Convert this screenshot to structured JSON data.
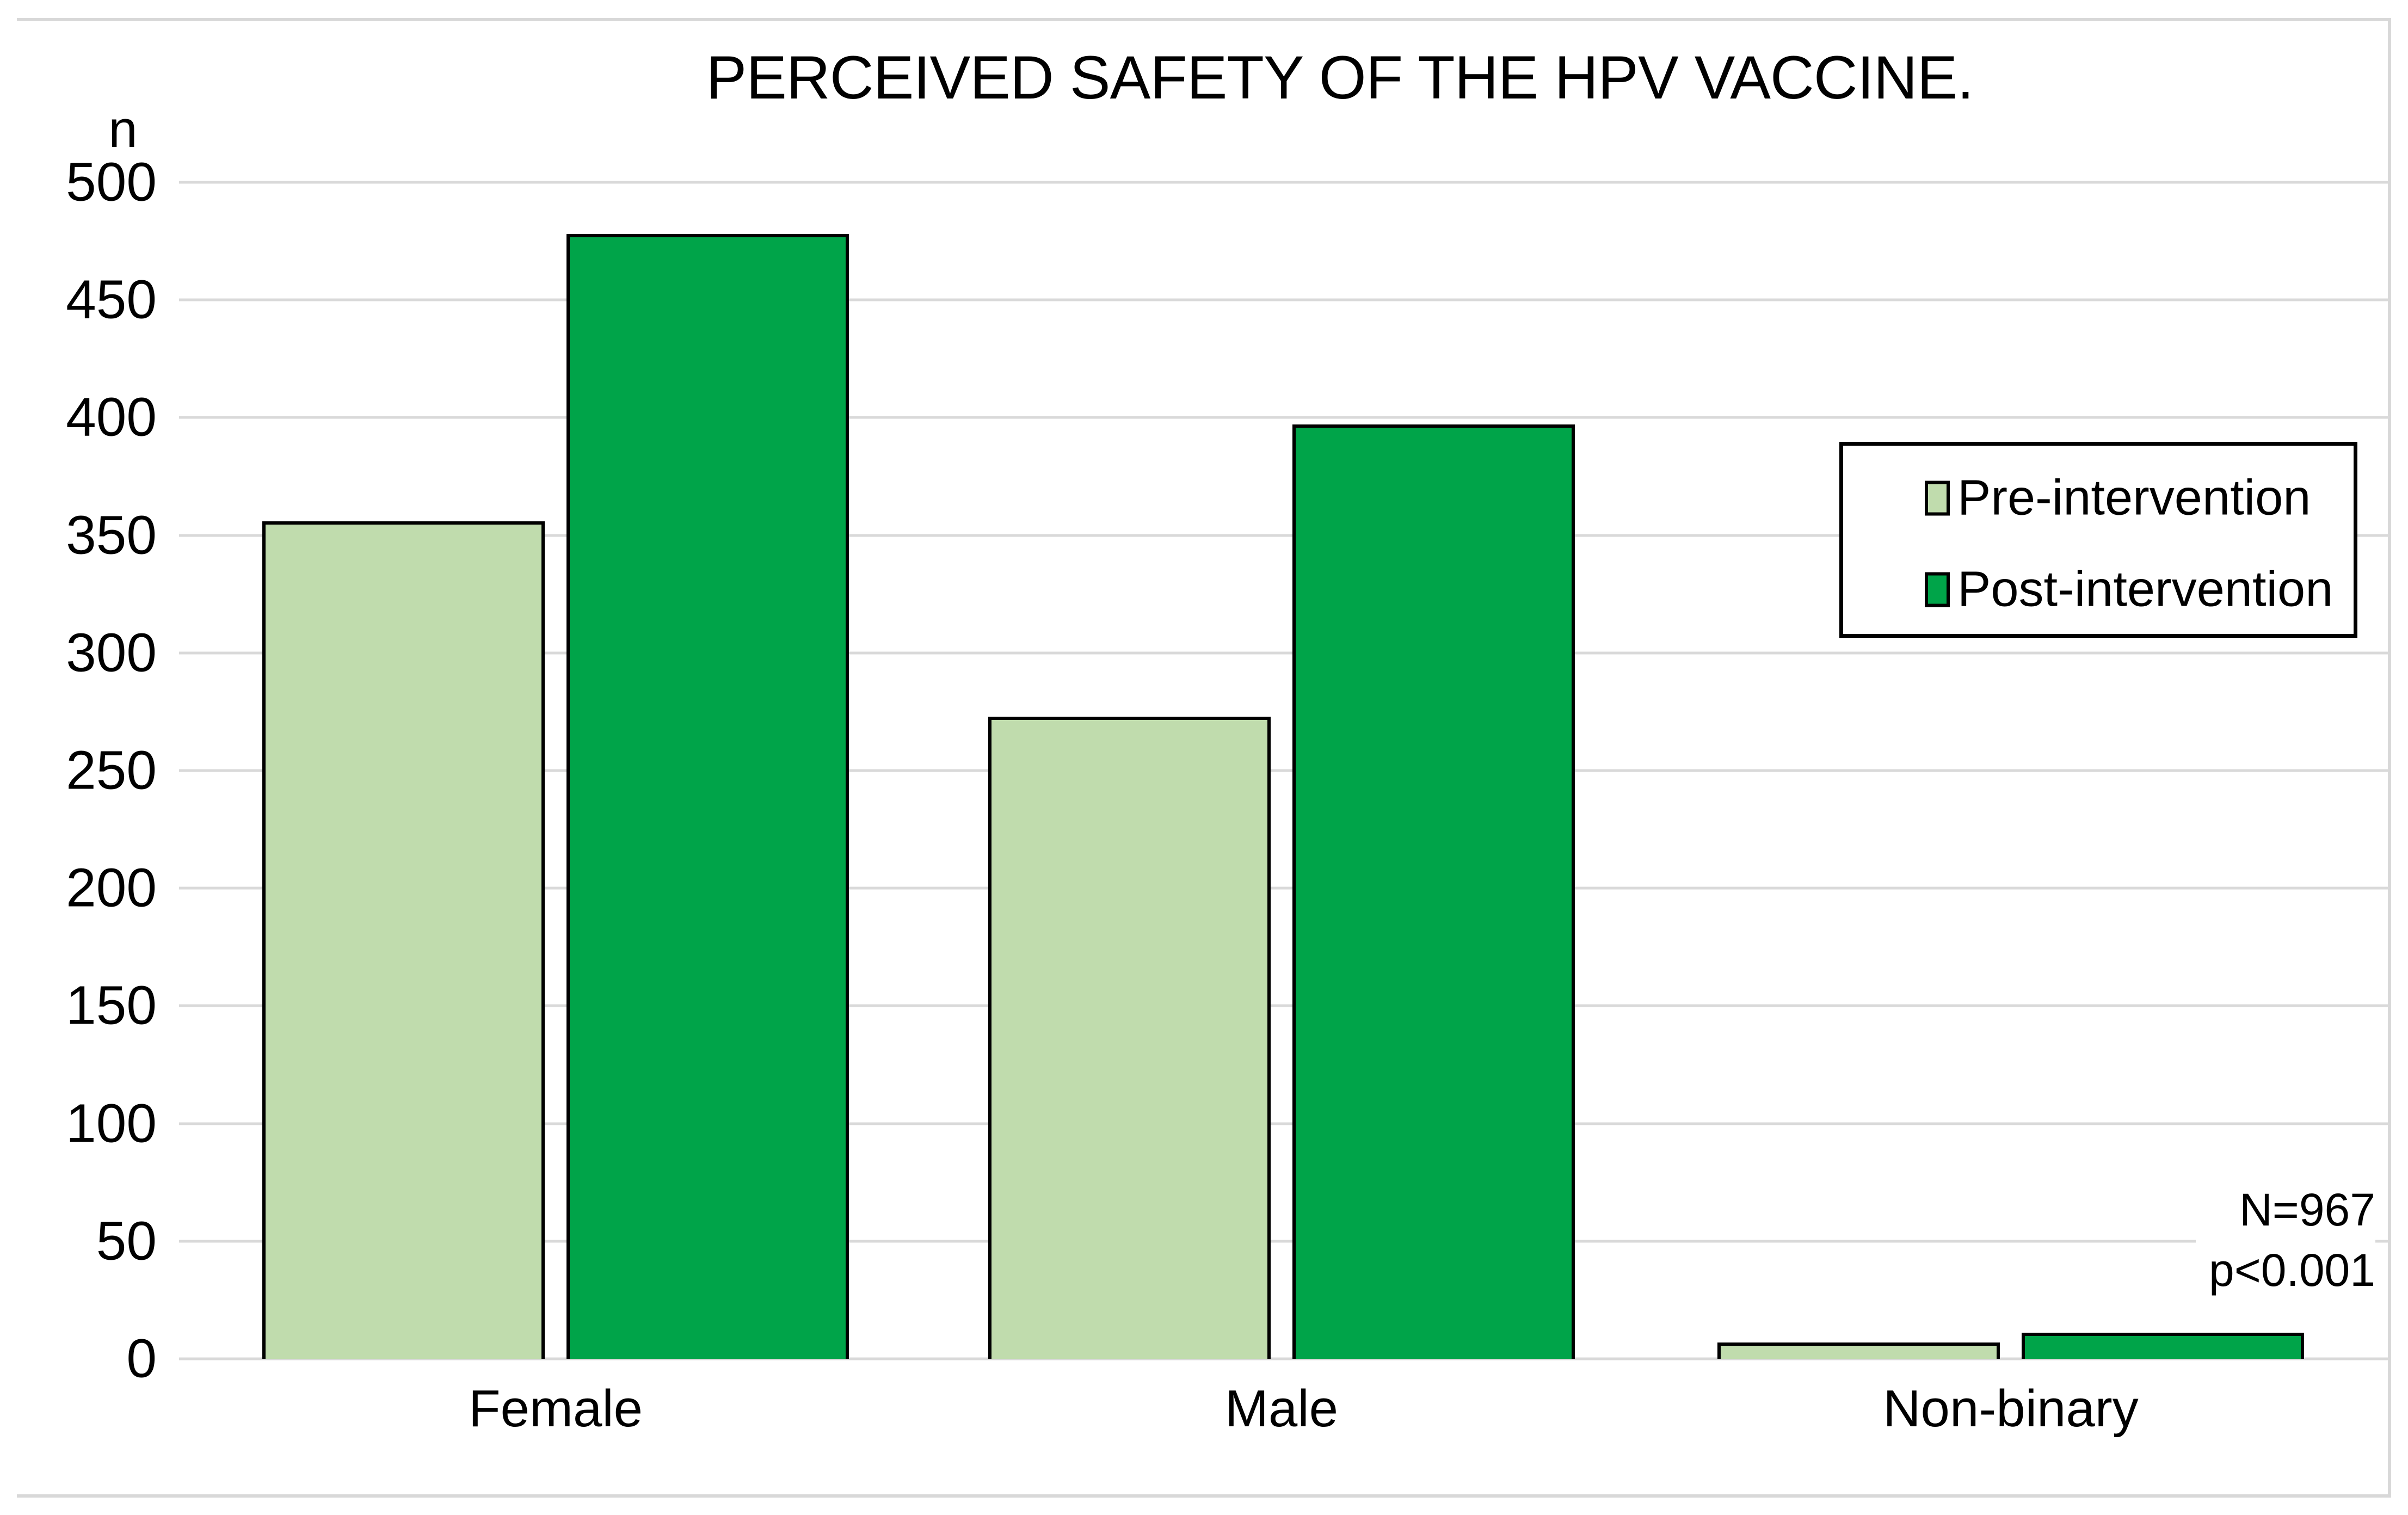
{
  "chart_data": {
    "type": "bar",
    "title": "PERCEIVED SAFETY OF THE HPV VACCINE.",
    "categories": [
      "Female",
      "Male",
      "Non-binary"
    ],
    "series": [
      {
        "name": "Pre-intervention",
        "color": "#c0dcad",
        "values": [
          356,
          273,
          7
        ]
      },
      {
        "name": "Post-intervention",
        "color": "#00a449",
        "values": [
          478,
          397,
          11
        ]
      }
    ],
    "xlabel": "",
    "ylabel": "n",
    "ylim": [
      0,
      500
    ],
    "ytick_step": 50,
    "grid": true,
    "legend_position": "inside-right",
    "annotations": [
      "N=967",
      "p<0.001"
    ]
  },
  "axis": {
    "unit_label": "n",
    "ticks": [
      "500",
      "450",
      "400",
      "350",
      "300",
      "250",
      "200",
      "150",
      "100",
      "50",
      "0"
    ]
  },
  "legend": {
    "items": [
      {
        "label": "Pre-intervention",
        "color": "#c0dcad"
      },
      {
        "label": "Post-intervention",
        "color": "#00a449"
      }
    ]
  },
  "annotation": {
    "lines": [
      "N=967",
      "p<0.001"
    ]
  },
  "colors": {
    "gridline": "#d9d9d9",
    "figure_border": "#d8d8d8",
    "bar_border": "#000000",
    "pre_fill": "#c0dcad",
    "post_fill": "#00a449",
    "text": "#000000",
    "background": "#ffffff"
  }
}
